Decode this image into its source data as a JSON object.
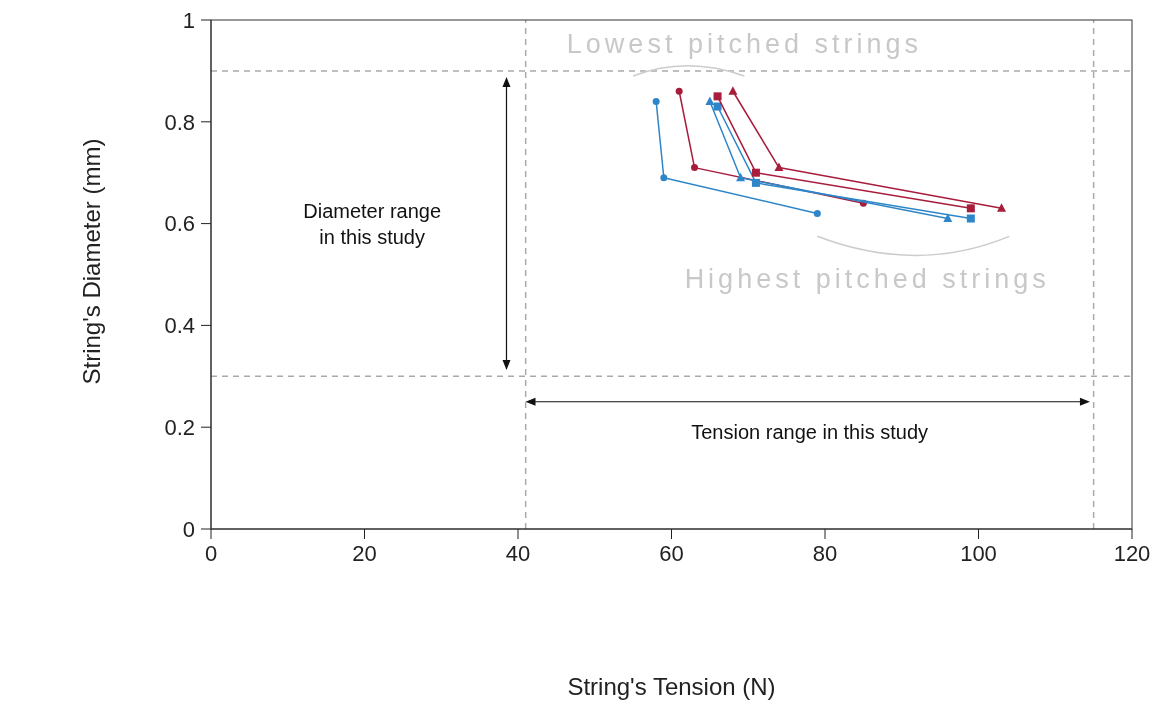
{
  "chart_data": {
    "type": "line",
    "xlabel": "String's Tension (N)",
    "ylabel": "String's Diameter (mm)",
    "xlim": [
      0,
      120
    ],
    "xticks": [
      0,
      20,
      40,
      60,
      80,
      100,
      120
    ],
    "ylim": [
      0,
      1
    ],
    "yticks": [
      0,
      0.2,
      0.4,
      0.6,
      0.8,
      1
    ],
    "series": [
      {
        "color": "#2e86c8",
        "marker": "circle",
        "x": [
          58,
          59,
          79
        ],
        "values": [
          0.84,
          0.69,
          0.62
        ]
      },
      {
        "color": "#a81c3c",
        "marker": "circle",
        "x": [
          61,
          63,
          85
        ],
        "values": [
          0.86,
          0.71,
          0.64
        ]
      },
      {
        "color": "#2e86c8",
        "marker": "triangle",
        "x": [
          65,
          69,
          96
        ],
        "values": [
          0.84,
          0.69,
          0.61
        ]
      },
      {
        "color": "#2e86c8",
        "marker": "square",
        "x": [
          66,
          71,
          99
        ],
        "values": [
          0.83,
          0.68,
          0.61
        ]
      },
      {
        "color": "#a81c3c",
        "marker": "square",
        "x": [
          66,
          71,
          99
        ],
        "values": [
          0.85,
          0.7,
          0.63
        ]
      },
      {
        "color": "#a81c3c",
        "marker": "triangle",
        "x": [
          68,
          74,
          103
        ],
        "values": [
          0.86,
          0.71,
          0.63
        ]
      }
    ],
    "ref_lines": [
      {
        "axis": "x",
        "value": 41,
        "color": "#aaaaaa",
        "line_style": "dashed"
      },
      {
        "axis": "x",
        "value": 115,
        "color": "#aaaaaa",
        "line_style": "dashed"
      },
      {
        "axis": "y",
        "value": 0.9,
        "color": "#aaaaaa",
        "line_style": "dashed"
      },
      {
        "axis": "y",
        "value": 0.3,
        "color": "#aaaaaa",
        "line_style": "dashed"
      }
    ],
    "annotations": [
      "Lowest pitched strings",
      "Highest pitched strings",
      "Diameter range in this study",
      "Tension range in this study"
    ]
  }
}
